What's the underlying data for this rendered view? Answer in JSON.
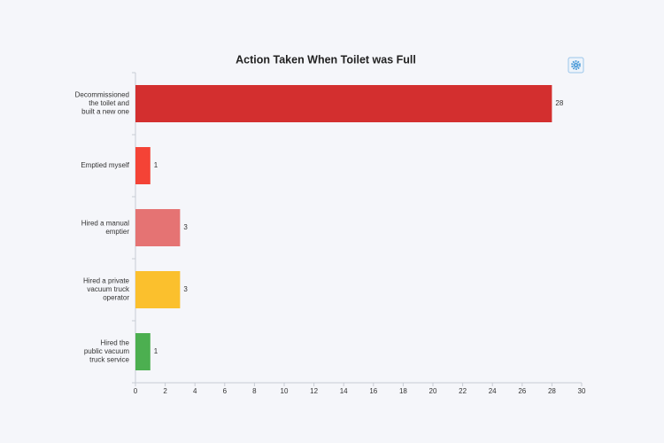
{
  "chart_data": {
    "type": "bar",
    "orientation": "horizontal",
    "title": "Action Taken When Toilet was Full",
    "categories": [
      "Decommissioned\nthe toilet and\nbuilt a new one",
      "Emptied myself",
      "Hired a manual\nemptier",
      "Hired a private\nvacuum truck\noperator",
      "Hired the\npublic vacuum\ntruck service"
    ],
    "values": [
      28,
      1,
      3,
      3,
      1
    ],
    "colors": [
      "#d32f2f",
      "#f44336",
      "#e57373",
      "#fbc02d",
      "#4caf50"
    ],
    "xlim": [
      0,
      30
    ],
    "xticks": [
      0,
      2,
      4,
      6,
      8,
      10,
      12,
      14,
      16,
      18,
      20,
      22,
      24,
      26,
      28,
      30
    ]
  }
}
